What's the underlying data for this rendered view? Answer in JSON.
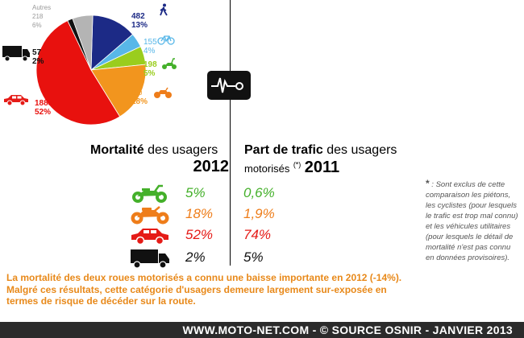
{
  "chart_data": {
    "type": "pie",
    "slices": [
      {
        "label": "",
        "value": 482,
        "percent": "13%",
        "color": "#1c2a86",
        "icon": "pedestrian-icon"
      },
      {
        "label": "",
        "value": 155,
        "percent": "4%",
        "color": "#58b7e8",
        "icon": "bicycle-icon"
      },
      {
        "label": "",
        "value": 198,
        "percent": "5%",
        "color": "#9acd1e",
        "icon": "moped-icon"
      },
      {
        "label": "",
        "value": 650,
        "percent": "18%",
        "color": "#f2951e",
        "icon": "motorcycle-icon"
      },
      {
        "label": "",
        "value": 1885,
        "percent": "52%",
        "color": "#e8110e",
        "icon": "car-icon"
      },
      {
        "label": "",
        "value": 57,
        "percent": "2%",
        "color": "#111111",
        "icon": "truck-icon"
      },
      {
        "label": "Autres",
        "value": 218,
        "percent": "6%",
        "color": "#b4b4b4",
        "icon": ""
      }
    ]
  },
  "headers": {
    "left_bold": "Mortalité",
    "left_rest": " des usagers",
    "left_year": "2012",
    "right_bold": "Part de trafic",
    "right_rest": " des usagers",
    "right_line2": "motorisés",
    "right_sup": "(*)",
    "right_year": "2011"
  },
  "rows": [
    {
      "icon": "moped-icon",
      "mortality": "5%",
      "traffic": "0,6%",
      "color": "#44b02a"
    },
    {
      "icon": "motorcycle-icon",
      "mortality": "18%",
      "traffic": "1,9%",
      "color": "#ee7d1a"
    },
    {
      "icon": "car-icon",
      "mortality": "52%",
      "traffic": "74%",
      "color": "#e51b17"
    },
    {
      "icon": "truck-icon",
      "mortality": "2%",
      "traffic": "5%",
      "color": "#111111"
    }
  ],
  "note": {
    "star": "*",
    "text": " : Sont exclus de cette comparaison les piétons, les cyclistes (pour lesquels le trafic est trop mal connu) et les véhicules utilitaires (pour lesquels le détail de mortalité n'est pas connu en données provisoires)."
  },
  "paragraph": "La mortalité des deux roues motorisés a connu une baisse importante en 2012 (-14%). Malgré ces résultats, cette catégorie d'usagers demeure largement sur-exposée en termes de risque de décéder sur la route.",
  "footer": "WWW.MOTO-NET.COM - © SOURCE OSNIR - JANVIER 2013"
}
